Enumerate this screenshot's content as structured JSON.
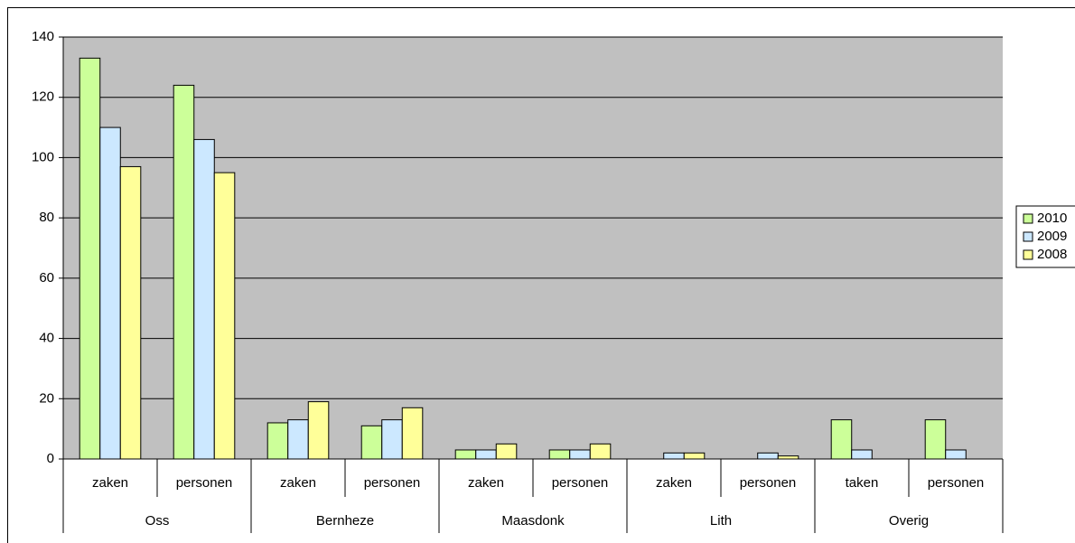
{
  "chart_data": {
    "type": "bar",
    "groups": [
      {
        "name": "Oss",
        "categories": [
          "zaken",
          "personen"
        ]
      },
      {
        "name": "Bernheze",
        "categories": [
          "zaken",
          "personen"
        ]
      },
      {
        "name": "Maasdonk",
        "categories": [
          "zaken",
          "personen"
        ]
      },
      {
        "name": "Lith",
        "categories": [
          "zaken",
          "personen"
        ]
      },
      {
        "name": "Overig",
        "categories": [
          "taken",
          "personen"
        ]
      }
    ],
    "series": [
      {
        "name": "2010",
        "color": "#ccff99",
        "values": [
          133,
          124,
          12,
          11,
          3,
          3,
          0,
          0,
          13,
          13
        ]
      },
      {
        "name": "2009",
        "color": "#cce8ff",
        "values": [
          110,
          106,
          13,
          13,
          3,
          3,
          2,
          2,
          3,
          3
        ]
      },
      {
        "name": "2008",
        "color": "#ffff99",
        "values": [
          97,
          95,
          19,
          17,
          5,
          5,
          2,
          1,
          0,
          0
        ]
      }
    ],
    "ylim": [
      0,
      140
    ],
    "yticks": [
      0,
      20,
      40,
      60,
      80,
      100,
      120,
      140
    ],
    "grid": true,
    "legend": "right"
  }
}
